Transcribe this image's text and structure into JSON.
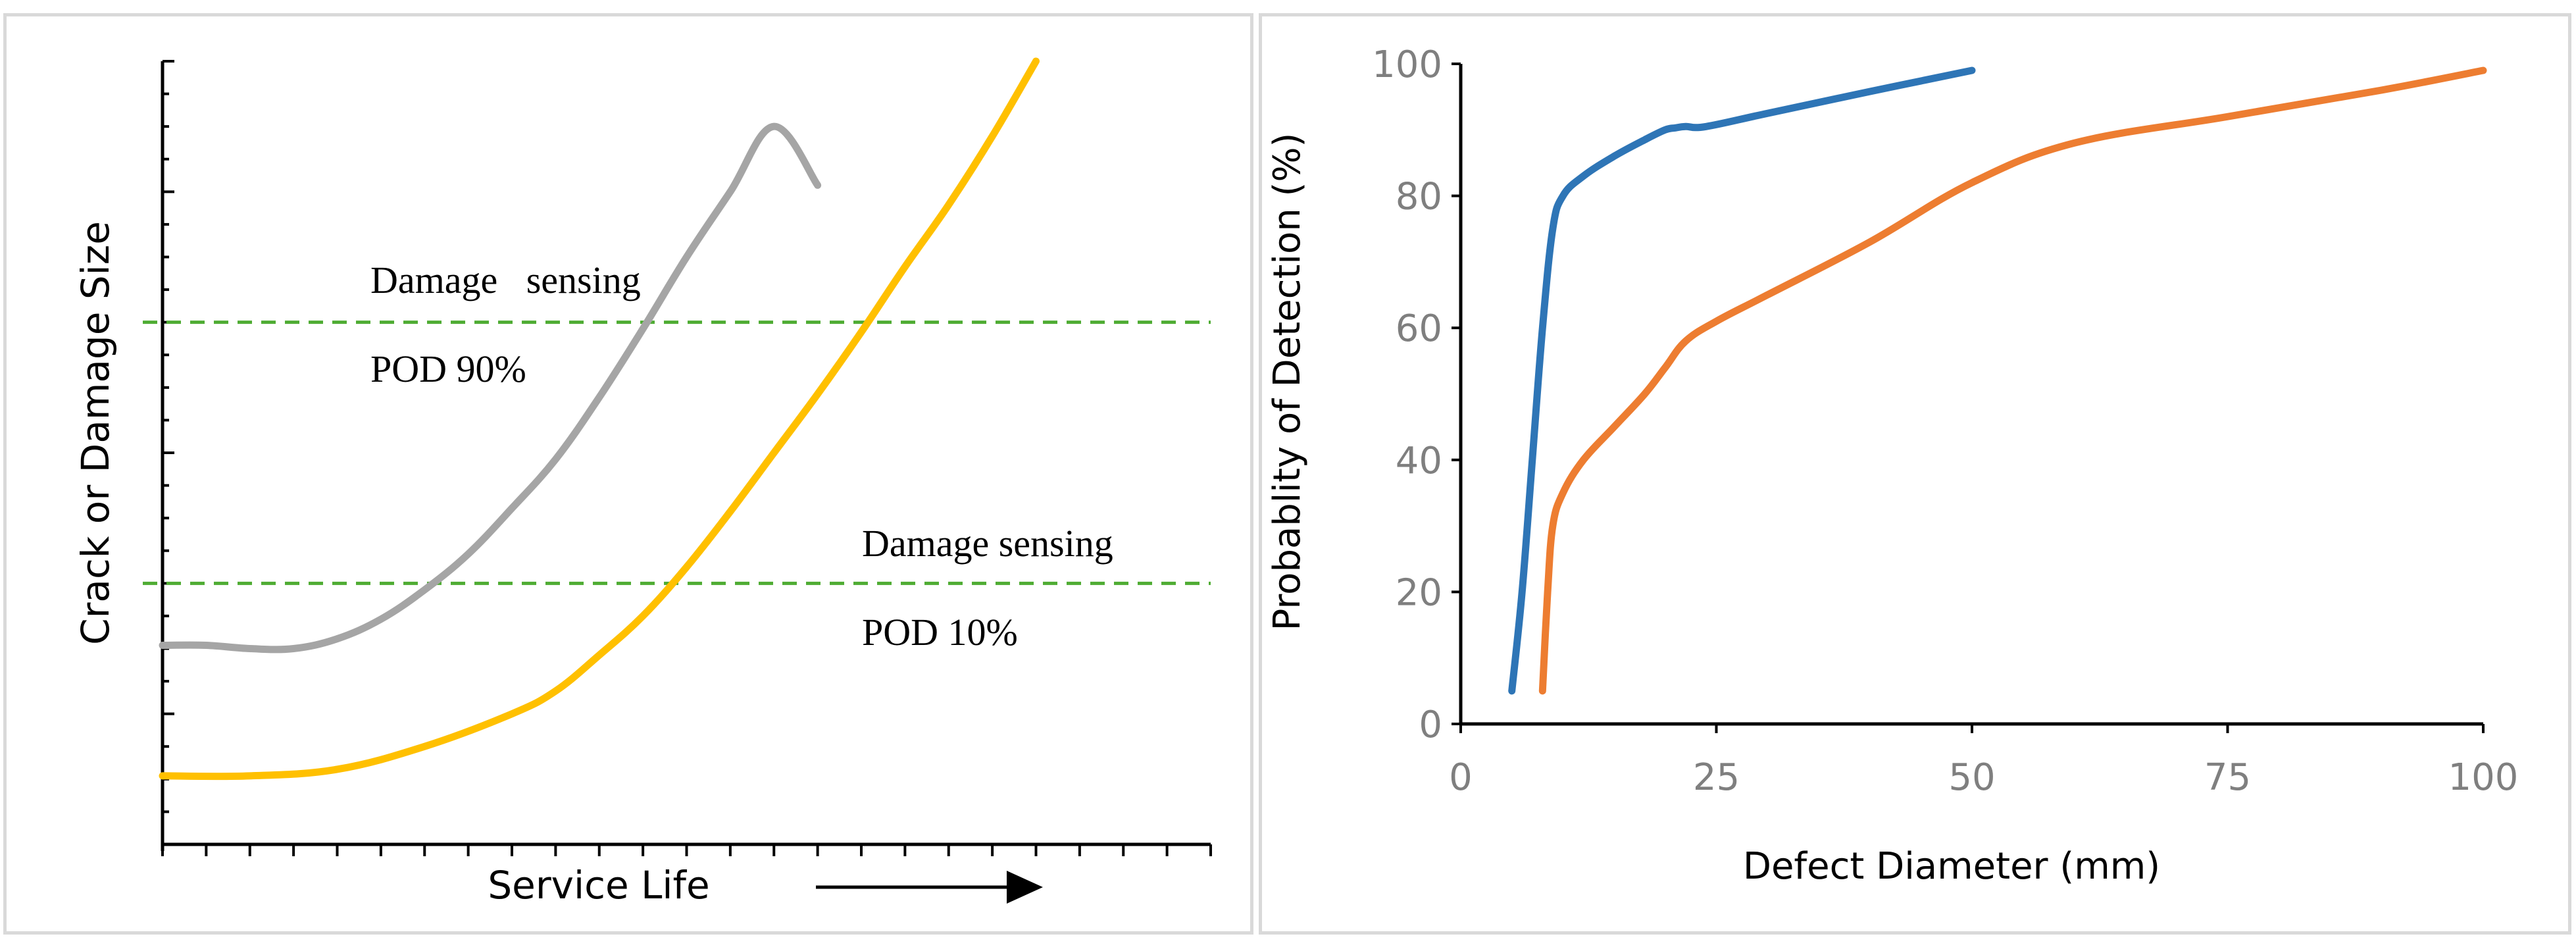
{
  "chart_data": [
    {
      "type": "line",
      "title": "",
      "xlabel": "Service Life",
      "ylabel": "Crack or Damage Size",
      "xlim": [
        0,
        24
      ],
      "ylim": [
        0,
        24
      ],
      "grid": false,
      "ticks_labeled": false,
      "series": [
        {
          "name": "gray curve",
          "color": "#a5a5a5",
          "x": [
            0,
            1,
            2,
            3,
            4,
            5,
            6,
            7,
            8,
            9,
            10,
            11,
            12,
            13,
            14,
            15
          ],
          "y": [
            6.1,
            6.1,
            6.0,
            6.0,
            6.3,
            6.9,
            7.8,
            8.9,
            10.3,
            11.8,
            13.7,
            15.8,
            18.0,
            20.0,
            22.0,
            20.2
          ]
        },
        {
          "name": "yellow curve",
          "color": "#ffc000",
          "x": [
            0,
            2,
            4,
            6,
            8,
            9,
            10,
            11,
            12,
            13,
            14,
            15,
            16,
            17,
            18,
            19,
            20
          ],
          "y": [
            2.1,
            2.1,
            2.3,
            3.0,
            4.0,
            4.7,
            5.8,
            7.0,
            8.5,
            10.2,
            12.0,
            13.8,
            15.7,
            17.7,
            19.6,
            21.7,
            24.0
          ]
        }
      ],
      "thresholds": [
        {
          "name": "POD 90%",
          "label_line1": "Damage   sensing",
          "label_line2": "POD 90%",
          "y": 16.0,
          "color": "#4fac33"
        },
        {
          "name": "POD 10%",
          "label_line1": "Damage sensing",
          "label_line2": "POD 10%",
          "y": 8.0,
          "color": "#4fac33"
        }
      ]
    },
    {
      "type": "line",
      "title": "",
      "xlabel": "Defect Diameter (mm)",
      "ylabel": "Probablity of Detection (%)",
      "xlim": [
        0,
        100
      ],
      "ylim": [
        0,
        100
      ],
      "xticks": [
        0,
        25,
        50,
        75,
        100
      ],
      "xtick_labels": [
        "0",
        "25",
        "50",
        "75",
        "100"
      ],
      "yticks": [
        0,
        20,
        40,
        60,
        80,
        100
      ],
      "ytick_labels": [
        "0",
        "20",
        "40",
        "60",
        "80",
        "100"
      ],
      "grid": false,
      "series": [
        {
          "name": "blue curve",
          "color": "#2e75b6",
          "x": [
            5,
            6,
            7,
            8,
            9,
            10,
            12,
            15,
            18,
            20,
            21,
            22,
            24,
            30,
            40,
            50
          ],
          "y": [
            5,
            20,
            40,
            60,
            75,
            80,
            83,
            86,
            88.5,
            90,
            90.3,
            90.5,
            90.5,
            92.5,
            95.8,
            99
          ]
        },
        {
          "name": "orange curve",
          "color": "#ed7d31",
          "x": [
            8,
            8.5,
            9,
            10,
            12,
            15,
            18,
            20,
            22,
            25,
            30,
            40,
            50,
            60,
            75,
            90,
            100
          ],
          "y": [
            5,
            20,
            30,
            35,
            40,
            45,
            50,
            54,
            58,
            61,
            65,
            73,
            82,
            88,
            92,
            96,
            99
          ]
        }
      ]
    }
  ]
}
